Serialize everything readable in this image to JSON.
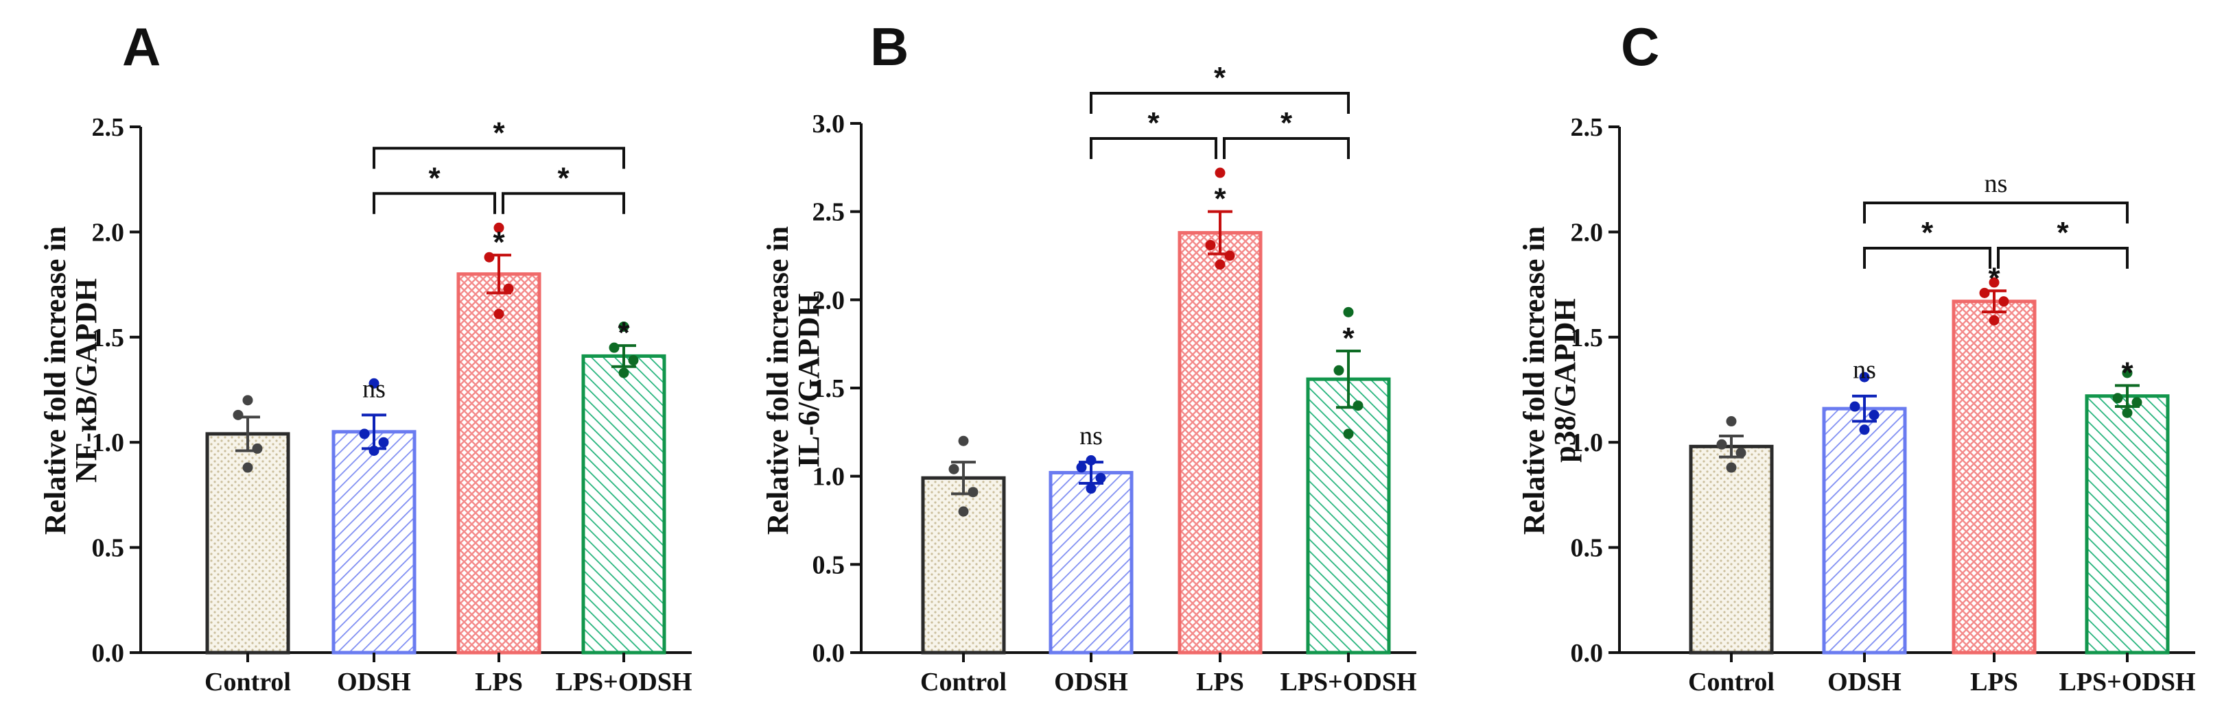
{
  "chart_data": [
    {
      "type": "bar",
      "panel": "A",
      "ylabel_line1": "Relative fold increase in",
      "ylabel_line2": "NF-κB/GAPDH",
      "categories": [
        "Control",
        "ODSH",
        "LPS",
        "LPS+ODSH"
      ],
      "values": [
        1.04,
        1.05,
        1.8,
        1.41
      ],
      "errors": [
        0.08,
        0.08,
        0.09,
        0.05
      ],
      "points": [
        [
          1.2,
          1.13,
          0.97,
          0.88
        ],
        [
          1.28,
          1.04,
          1.0,
          0.96
        ],
        [
          2.02,
          1.88,
          1.73,
          1.61
        ],
        [
          1.55,
          1.45,
          1.39,
          1.33
        ]
      ],
      "ylim": [
        0,
        2.5
      ],
      "yticks": [
        "0.0",
        "0.5",
        "1.0",
        "1.5",
        "2.0",
        "2.5"
      ],
      "bar_labels": [
        "",
        "ns",
        "*",
        "*"
      ],
      "brackets": [
        {
          "from": 1,
          "to": 3,
          "label": "*",
          "level": 2
        },
        {
          "from": 1,
          "to": 2,
          "label": "*",
          "level": 1
        },
        {
          "from": 2,
          "to": 3,
          "label": "*",
          "level": 1
        }
      ]
    },
    {
      "type": "bar",
      "panel": "B",
      "ylabel_line1": "Relative fold increase in",
      "ylabel_line2": "IL-6/GAPDH",
      "categories": [
        "Control",
        "ODSH",
        "LPS",
        "LPS+ODSH"
      ],
      "values": [
        0.99,
        1.02,
        2.38,
        1.55
      ],
      "errors": [
        0.09,
        0.06,
        0.12,
        0.16
      ],
      "points": [
        [
          1.2,
          1.04,
          0.91,
          0.8
        ],
        [
          1.09,
          1.05,
          0.99,
          0.93
        ],
        [
          2.72,
          2.31,
          2.25,
          2.2
        ],
        [
          1.93,
          1.6,
          1.4,
          1.24
        ]
      ],
      "ylim": [
        0,
        3.0
      ],
      "yticks": [
        "0.0",
        "0.5",
        "1.0",
        "1.5",
        "2.0",
        "2.5",
        "3.0"
      ],
      "bar_labels": [
        "",
        "ns",
        "*",
        "*"
      ],
      "brackets": [
        {
          "from": 1,
          "to": 3,
          "label": "*",
          "level": 2
        },
        {
          "from": 1,
          "to": 2,
          "label": "*",
          "level": 1
        },
        {
          "from": 2,
          "to": 3,
          "label": "*",
          "level": 1
        }
      ]
    },
    {
      "type": "bar",
      "panel": "C",
      "ylabel_line1": "Relative fold increase in",
      "ylabel_line2": "p38/GAPDH",
      "categories": [
        "Control",
        "ODSH",
        "LPS",
        "LPS+ODSH"
      ],
      "values": [
        0.98,
        1.16,
        1.67,
        1.22
      ],
      "errors": [
        0.05,
        0.06,
        0.05,
        0.05
      ],
      "points": [
        [
          1.1,
          0.99,
          0.95,
          0.88
        ],
        [
          1.31,
          1.17,
          1.13,
          1.06
        ],
        [
          1.76,
          1.71,
          1.67,
          1.58
        ],
        [
          1.33,
          1.21,
          1.19,
          1.14
        ]
      ],
      "ylim": [
        0,
        2.5
      ],
      "yticks": [
        "0.0",
        "0.5",
        "1.0",
        "1.5",
        "2.0",
        "2.5"
      ],
      "bar_labels": [
        "",
        "ns",
        "*",
        "*"
      ],
      "brackets": [
        {
          "from": 1,
          "to": 3,
          "label": "ns",
          "level": 2
        },
        {
          "from": 1,
          "to": 2,
          "label": "*",
          "level": 1
        },
        {
          "from": 2,
          "to": 3,
          "label": "*",
          "level": 1
        }
      ]
    }
  ],
  "colors": {
    "control_stroke": "#2b2b2b",
    "control_dot": "#444444",
    "control_fill": "#ece6d4",
    "odsh_stroke": "#6a7bf0",
    "odsh_dot": "#0c22b8",
    "lps_stroke": "#f06a6a",
    "lps_dot": "#c50f0f",
    "combo_stroke": "#12964c",
    "combo_dot": "#0d6b24"
  }
}
